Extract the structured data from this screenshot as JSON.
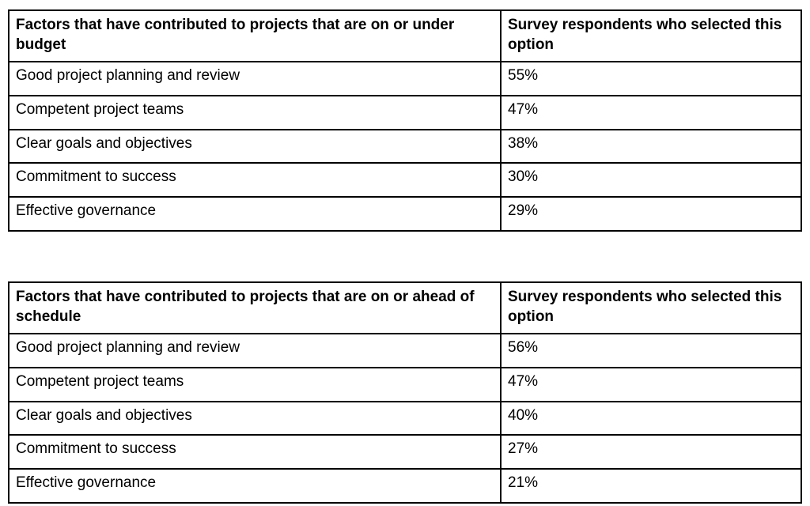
{
  "tables": [
    {
      "header": {
        "factor_label": "Factors that have contributed to projects that are on or under budget",
        "value_label": "Survey respondents who selected this option"
      },
      "rows": [
        {
          "factor": "Good project planning and review",
          "value": "55%"
        },
        {
          "factor": "Competent project teams",
          "value": "47%"
        },
        {
          "factor": "Clear goals and objectives",
          "value": "38%"
        },
        {
          "factor": "Commitment to success",
          "value": "30%"
        },
        {
          "factor": "Effective governance",
          "value": "29%"
        }
      ]
    },
    {
      "header": {
        "factor_label": "Factors that have contributed to projects that are on or ahead of schedule",
        "value_label": "Survey respondents who selected this option"
      },
      "rows": [
        {
          "factor": "Good project planning and review",
          "value": "56%"
        },
        {
          "factor": "Competent project teams",
          "value": "47%"
        },
        {
          "factor": "Clear goals and objectives",
          "value": "40%"
        },
        {
          "factor": "Commitment to success",
          "value": "27%"
        },
        {
          "factor": "Effective governance",
          "value": "21%"
        }
      ]
    }
  ],
  "colors": {
    "border": "#000000",
    "text": "#000000",
    "background": "#ffffff"
  }
}
